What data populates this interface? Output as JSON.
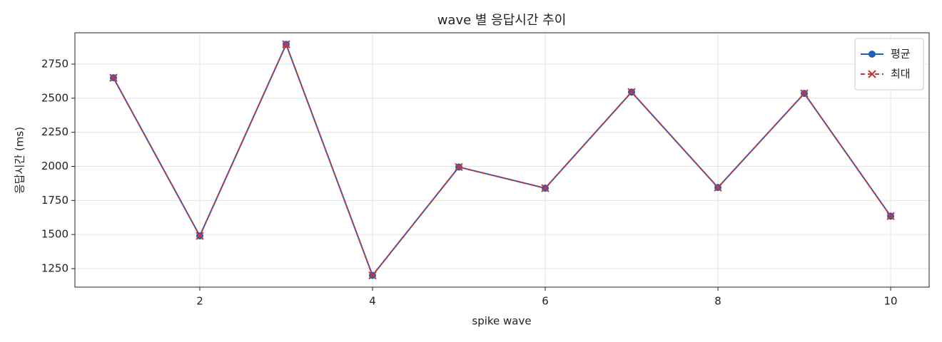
{
  "chart_data": {
    "type": "line",
    "title": "wave 별 응답시간 추이",
    "x_label": "spike wave",
    "y_label": "응답시간 (ms)",
    "x": [
      1,
      2,
      3,
      4,
      5,
      6,
      7,
      8,
      9,
      10
    ],
    "series": [
      {
        "name": "평균",
        "color": "#1f5fbf",
        "marker": "circle",
        "dash": false,
        "values": [
          2650,
          1490,
          2895,
          1200,
          1995,
          1840,
          2545,
          1845,
          2535,
          1635
        ]
      },
      {
        "name": "최대",
        "color": "#c8373a",
        "marker": "x",
        "dash": true,
        "values": [
          2650,
          1490,
          2895,
          1200,
          1995,
          1840,
          2545,
          1845,
          2535,
          1635
        ]
      }
    ],
    "xlim": [
      0.554,
      10.446
    ],
    "ylim": [
      1114,
      2980
    ],
    "xticks": [
      2,
      4,
      6,
      8,
      10
    ],
    "yticks": [
      1250,
      1500,
      1750,
      2000,
      2250,
      2500,
      2750
    ],
    "grid": true,
    "legend": "upper right"
  }
}
